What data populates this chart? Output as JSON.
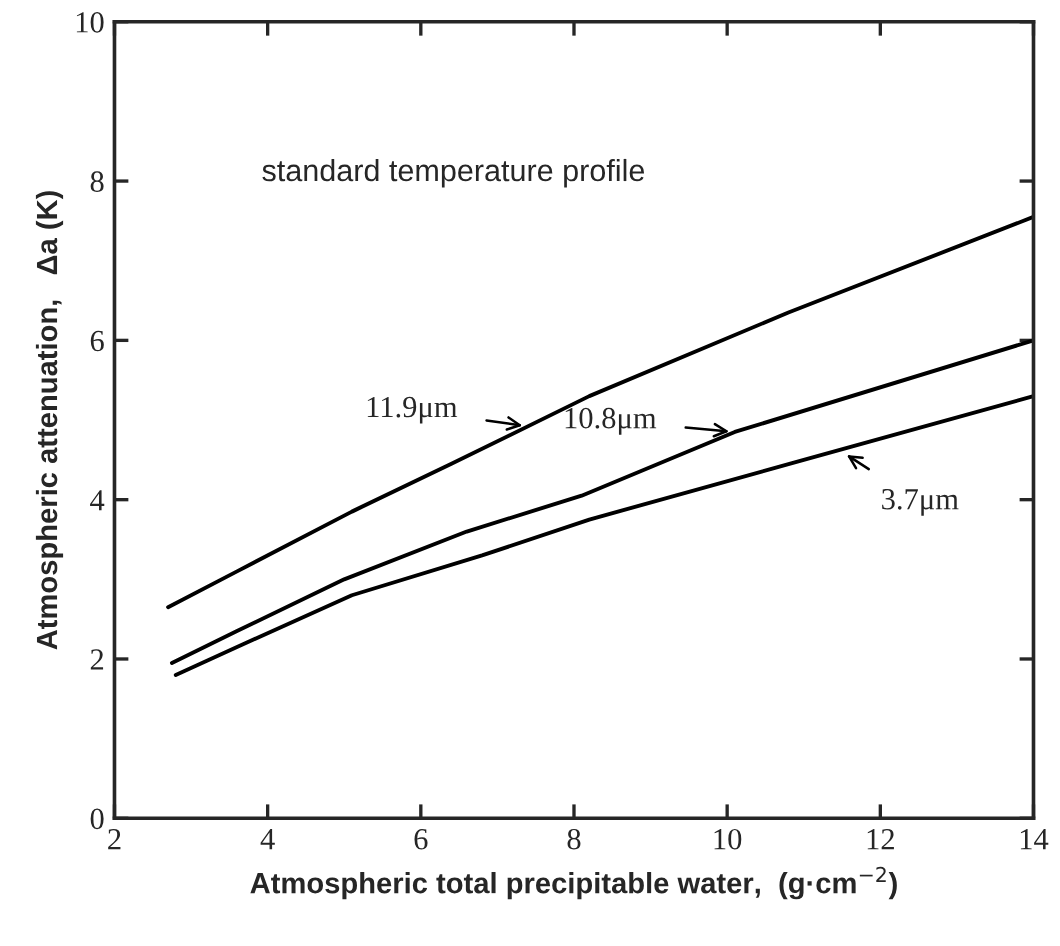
{
  "chart_data": {
    "type": "line",
    "xlabel": "Atmospheric total precipitable water,  (g·cm$^{−2}$)",
    "ylabel": "Atmospheric attenuation,   Δa (K)",
    "series": [
      {
        "color": "#000000",
        "x": [
          2.7,
          3.6,
          5.1,
          6.4,
          8.2,
          10.8,
          14
        ],
        "values": [
          2.65,
          3.1,
          3.85,
          4.45,
          5.3,
          6.35,
          7.55
        ]
      },
      {
        "color": "#000000",
        "x": [
          2.75,
          3.6,
          5.0,
          6.6,
          8.1,
          10.1,
          14
        ],
        "values": [
          1.95,
          2.35,
          3.0,
          3.6,
          4.05,
          4.85,
          6.0
        ]
      },
      {
        "color": "#000000",
        "x": [
          2.8,
          3.6,
          5.1,
          6.8,
          8.2,
          11.0,
          14
        ],
        "values": [
          1.8,
          2.15,
          2.8,
          3.3,
          3.75,
          4.5,
          5.3
        ]
      }
    ],
    "annotations": [
      "standard temperature profile",
      {
        "text": "11.9μm",
        "x": 7.4,
        "y": 4.92
      },
      {
        "text": "10.8μm",
        "x": 10.1,
        "y": 4.85
      },
      {
        "text": "3.7μm",
        "x": 11.5,
        "y": 4.6
      }
    ],
    "xlim": [
      2,
      14
    ],
    "ylim": [
      0,
      10
    ],
    "xticks": [
      2,
      4,
      6,
      8,
      10,
      12,
      14
    ],
    "yticks": [
      0,
      2,
      4,
      6,
      8,
      10
    ],
    "grid": false,
    "legend": false,
    "marker": "none",
    "line_style": "solid"
  }
}
